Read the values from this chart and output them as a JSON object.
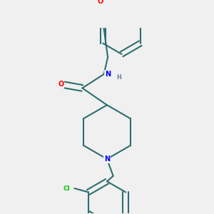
{
  "bg_color": "#f0f0f0",
  "bond_color": "#2d6e6e",
  "bond_width": 1.5,
  "atom_colors": {
    "O": "#ff0000",
    "N": "#0000ff",
    "Cl": "#00cc00",
    "H": "#708090",
    "C": "#000000"
  },
  "figsize": [
    3.0,
    3.0
  ],
  "dpi": 100
}
